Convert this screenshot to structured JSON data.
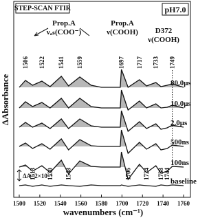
{
  "chart_data": {
    "type": "line",
    "box_title": "STEP-SCAN FTIR",
    "condition": "pH7.0",
    "xlabel": "wavenumbers (cm⁻¹)",
    "ylabel": "ΔAbsorbance",
    "scale_bar": "ΔA=2×10⁻⁴",
    "annotations": [
      "Prop.A",
      "νₐₛ(COO⁻)",
      "Prop.A",
      "ν(COOH)",
      "D372",
      "ν(COOH)"
    ],
    "xticks": [
      1500,
      1520,
      1540,
      1560,
      1580,
      1700,
      1720,
      1740,
      1760
    ],
    "top_peaks": [
      1506,
      1522,
      1541,
      1559,
      1697,
      1717,
      1733,
      1749
    ],
    "bottom_peaks": [
      1513,
      1530,
      1548,
      1706,
      1724,
      1738,
      1744
    ],
    "fill_color": "#b8b8b8",
    "x": [
      1500,
      1506,
      1513,
      1522,
      1530,
      1541,
      1548,
      1559,
      1570,
      1580,
      1690,
      1697,
      1706,
      1717,
      1724,
      1733,
      1738,
      1744,
      1749,
      1760
    ],
    "series": [
      {
        "name": "80.0μs",
        "color": "#111111",
        "values": [
          0,
          1.0,
          0.3,
          0.9,
          0.1,
          1.6,
          0.2,
          1.5,
          0.3,
          0,
          0,
          2.6,
          0,
          1.1,
          0.2,
          0.7,
          0.1,
          0.3,
          0.5,
          0
        ]
      },
      {
        "name": "10.0μs",
        "color": "#111111",
        "values": [
          0,
          0.9,
          0.2,
          0.8,
          0,
          1.4,
          0,
          1.4,
          0.2,
          0,
          0,
          2.6,
          -0.3,
          1.0,
          0,
          0.6,
          0,
          0.1,
          0.4,
          0
        ]
      },
      {
        "name": "2.0μs",
        "color": "#111111",
        "values": [
          0,
          0.7,
          0,
          0.6,
          -0.2,
          1.2,
          -0.2,
          1.2,
          0.2,
          0,
          0,
          2.4,
          -0.6,
          0.8,
          -0.2,
          0.5,
          -0.3,
          -0.1,
          0.3,
          0
        ]
      },
      {
        "name": "500ns",
        "color": "#111111",
        "values": [
          0,
          0.5,
          -0.3,
          0.4,
          -0.4,
          1.1,
          -0.5,
          1.0,
          0.1,
          0,
          0,
          2.4,
          -1.0,
          0.6,
          -0.4,
          0.4,
          -0.5,
          -0.3,
          0.2,
          0
        ]
      },
      {
        "name": "100ns",
        "color": "#111111",
        "values": [
          0,
          0.3,
          -0.6,
          0.2,
          -0.8,
          1.0,
          -1.0,
          0.9,
          0.1,
          0,
          0,
          2.2,
          -1.8,
          0.4,
          -0.8,
          0.2,
          -0.9,
          -0.6,
          0.1,
          0
        ]
      },
      {
        "name": "baseline",
        "color": "#111111",
        "values": [
          0,
          0.1,
          -0.1,
          0.1,
          -0.1,
          0.1,
          0,
          -0.1,
          0.1,
          0,
          0,
          0.1,
          -0.1,
          0.1,
          0,
          -0.1,
          0.1,
          0,
          0.1,
          0
        ]
      }
    ]
  }
}
